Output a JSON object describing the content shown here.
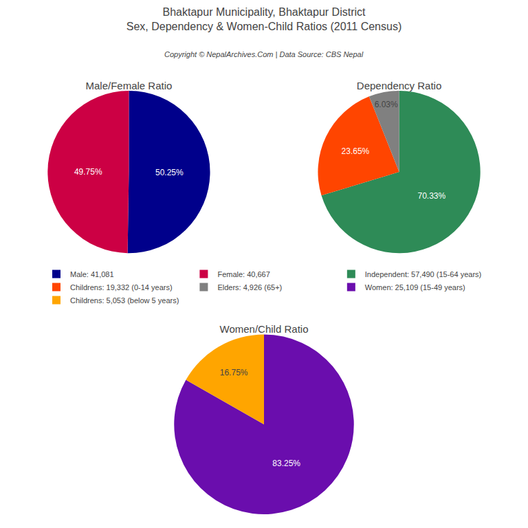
{
  "title": "Bhaktapur Municipality, Bhaktapur District",
  "subtitle": "Sex, Dependency & Women-Child Ratios (2011 Census)",
  "annotations": [
    "Copyright © NepalArchives.Com | Data Source: CBS Nepal"
  ],
  "chart_data": [
    {
      "type": "pie",
      "title": "Male/Female Ratio",
      "categories": [
        "Male: 41,081",
        "Female: 40,667"
      ],
      "values": [
        50.25,
        49.75
      ],
      "value_labels": [
        "50.25%",
        "49.75%"
      ],
      "colors": [
        "#00008B",
        "#CC0044"
      ],
      "data_labels": true,
      "legend": "center"
    },
    {
      "type": "pie",
      "title": "Dependency Ratio",
      "categories": [
        "Independent: 57,490 (15-64 years)",
        "Childrens: 19,332 (0-14 years)",
        "Elders: 4,926 (65+)"
      ],
      "values": [
        70.33,
        23.65,
        6.03
      ],
      "value_labels": [
        "70.33%",
        "23.65%",
        "6.03%"
      ],
      "colors": [
        "#2E8B57",
        "#FF4500",
        "#808080"
      ],
      "data_labels": true,
      "legend": "center"
    },
    {
      "type": "pie",
      "title": "Women/Child Ratio",
      "categories": [
        "Women: 25,109 (15-49 years)",
        "Childrens: 5,053 (below 5 years)"
      ],
      "values": [
        83.25,
        16.75
      ],
      "value_labels": [
        "83.25%",
        "16.75%"
      ],
      "colors": [
        "#6A0DAD",
        "#FFA500"
      ],
      "data_labels": true,
      "legend": "center"
    }
  ]
}
